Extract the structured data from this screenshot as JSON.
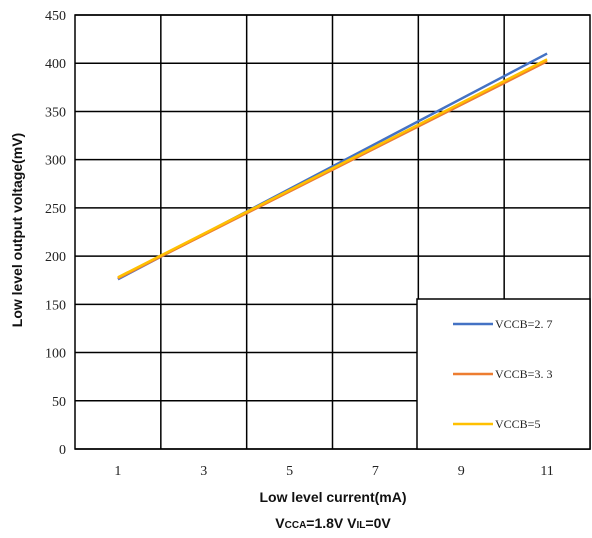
{
  "chart_data": {
    "type": "line",
    "xlabel": "Low level current(mA)",
    "ylabel": "Low level output voltage(mV)",
    "condition": {
      "part1_main": "V",
      "part1_sub": "CCA",
      "part1_rest": "=1.8V ",
      "part2_main": "V",
      "part2_sub": "IL",
      "part2_rest": "=0V"
    },
    "xlim": [
      0,
      12
    ],
    "ylim": [
      0,
      450
    ],
    "x_ticks": [
      1,
      3,
      5,
      7,
      9,
      11
    ],
    "y_ticks": [
      0,
      50,
      100,
      150,
      200,
      250,
      300,
      350,
      400,
      450
    ],
    "grid": true,
    "legend_position": "bottom-right",
    "series": [
      {
        "name": "VCCB=2. 7",
        "color": "#4472C4",
        "x": [
          1,
          11
        ],
        "y": [
          176,
          410
        ]
      },
      {
        "name": "VCCB=3. 3",
        "color": "#ED7D31",
        "x": [
          1,
          11
        ],
        "y": [
          177,
          402
        ]
      },
      {
        "name": "VCCB=5",
        "color": "#FFC000",
        "x": [
          1,
          11
        ],
        "y": [
          178,
          404
        ]
      }
    ]
  }
}
